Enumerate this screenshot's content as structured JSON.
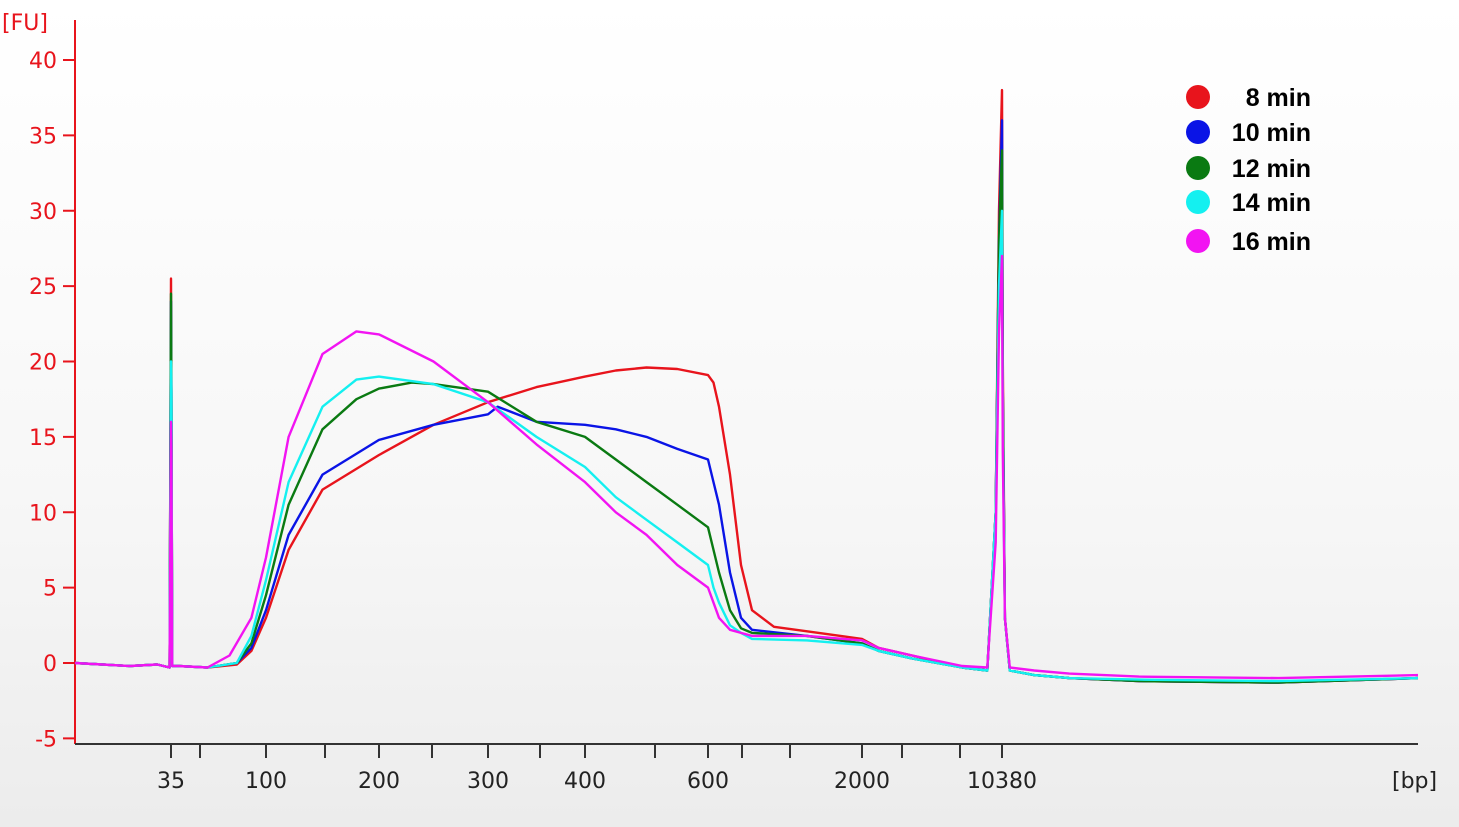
{
  "chart_data": {
    "type": "line",
    "ylabel": "[FU]",
    "xlabel": "[bp]",
    "ylim": [
      -5,
      42
    ],
    "yticks": [
      -5,
      0,
      5,
      10,
      15,
      20,
      25,
      30,
      35,
      40
    ],
    "x_scale": "electrophoresis-bp",
    "xtick_labels": [
      "35",
      "100",
      "200",
      "300",
      "400",
      "600",
      "2000",
      "10380"
    ],
    "grid": false,
    "legend": "top-right",
    "axis_color": "#e8141c",
    "series": [
      {
        "name": "8 min",
        "color": "#e8141c",
        "points": [
          [
            0,
            0
          ],
          [
            10,
            -0.1
          ],
          [
            20,
            -0.2
          ],
          [
            30,
            -0.1
          ],
          [
            34.5,
            -0.3
          ],
          [
            35,
            25.5
          ],
          [
            35.3,
            17
          ],
          [
            35.8,
            -0.2
          ],
          [
            40,
            -0.2
          ],
          [
            60,
            -0.3
          ],
          [
            80,
            -0.1
          ],
          [
            90,
            0.8
          ],
          [
            100,
            3
          ],
          [
            120,
            7.5
          ],
          [
            150,
            11.5
          ],
          [
            200,
            13.8
          ],
          [
            250,
            15.8
          ],
          [
            300,
            17.3
          ],
          [
            350,
            18.3
          ],
          [
            400,
            19
          ],
          [
            450,
            19.4
          ],
          [
            500,
            19.6
          ],
          [
            550,
            19.5
          ],
          [
            600,
            19.1
          ],
          [
            650,
            18.6
          ],
          [
            700,
            17
          ],
          [
            800,
            12.5
          ],
          [
            900,
            6.5
          ],
          [
            1000,
            3.5
          ],
          [
            1200,
            2.4
          ],
          [
            1500,
            2.1
          ],
          [
            2000,
            1.6
          ],
          [
            3000,
            1
          ],
          [
            5000,
            0.5
          ],
          [
            8000,
            -0.3
          ],
          [
            9500,
            -0.5
          ],
          [
            10000,
            10
          ],
          [
            10200,
            30
          ],
          [
            10380,
            38
          ],
          [
            10500,
            20
          ],
          [
            10800,
            3
          ],
          [
            11500,
            -0.5
          ],
          [
            15000,
            -0.8
          ],
          [
            20000,
            -1
          ],
          [
            30000,
            -1.2
          ],
          [
            50000,
            -1.3
          ],
          [
            70000,
            -1
          ]
        ]
      },
      {
        "name": "10 min",
        "color": "#0a14e6",
        "points": [
          [
            0,
            0
          ],
          [
            10,
            -0.1
          ],
          [
            20,
            -0.2
          ],
          [
            30,
            -0.1
          ],
          [
            34.5,
            -0.3
          ],
          [
            35,
            24
          ],
          [
            35.3,
            18
          ],
          [
            35.8,
            -0.2
          ],
          [
            40,
            -0.2
          ],
          [
            60,
            -0.3
          ],
          [
            80,
            0
          ],
          [
            90,
            1
          ],
          [
            100,
            3.5
          ],
          [
            120,
            8.5
          ],
          [
            150,
            12.5
          ],
          [
            200,
            14.8
          ],
          [
            250,
            15.8
          ],
          [
            300,
            16.5
          ],
          [
            310,
            17
          ],
          [
            350,
            16
          ],
          [
            400,
            15.8
          ],
          [
            450,
            15.5
          ],
          [
            500,
            15
          ],
          [
            550,
            14.2
          ],
          [
            600,
            13.5
          ],
          [
            650,
            12
          ],
          [
            700,
            10.5
          ],
          [
            800,
            6
          ],
          [
            900,
            3
          ],
          [
            1000,
            2.2
          ],
          [
            1500,
            1.8
          ],
          [
            2000,
            1.3
          ],
          [
            3000,
            0.8
          ],
          [
            5000,
            0.3
          ],
          [
            8000,
            -0.3
          ],
          [
            9500,
            -0.5
          ],
          [
            10000,
            10
          ],
          [
            10200,
            28
          ],
          [
            10380,
            36
          ],
          [
            10500,
            18
          ],
          [
            10800,
            3
          ],
          [
            11500,
            -0.5
          ],
          [
            15000,
            -0.8
          ],
          [
            20000,
            -1
          ],
          [
            30000,
            -1.2
          ],
          [
            50000,
            -1.3
          ],
          [
            70000,
            -1
          ]
        ]
      },
      {
        "name": "12 min",
        "color": "#0a7a12",
        "points": [
          [
            0,
            0
          ],
          [
            10,
            -0.1
          ],
          [
            20,
            -0.2
          ],
          [
            30,
            -0.1
          ],
          [
            34.5,
            -0.3
          ],
          [
            35,
            24.5
          ],
          [
            35.3,
            18
          ],
          [
            35.8,
            -0.2
          ],
          [
            40,
            -0.2
          ],
          [
            60,
            -0.3
          ],
          [
            80,
            0
          ],
          [
            90,
            1.3
          ],
          [
            100,
            4.5
          ],
          [
            120,
            10.5
          ],
          [
            150,
            15.5
          ],
          [
            180,
            17.5
          ],
          [
            200,
            18.2
          ],
          [
            230,
            18.6
          ],
          [
            250,
            18.5
          ],
          [
            300,
            18
          ],
          [
            350,
            16
          ],
          [
            400,
            15
          ],
          [
            450,
            13.5
          ],
          [
            500,
            12
          ],
          [
            550,
            10.5
          ],
          [
            600,
            9
          ],
          [
            650,
            7.5
          ],
          [
            700,
            6
          ],
          [
            800,
            3.5
          ],
          [
            900,
            2.3
          ],
          [
            1000,
            2
          ],
          [
            1500,
            1.8
          ],
          [
            2000,
            1.3
          ],
          [
            3000,
            0.8
          ],
          [
            5000,
            0.3
          ],
          [
            8000,
            -0.3
          ],
          [
            9500,
            -0.5
          ],
          [
            10000,
            10
          ],
          [
            10200,
            28
          ],
          [
            10380,
            34
          ],
          [
            10500,
            18
          ],
          [
            10800,
            3
          ],
          [
            11500,
            -0.5
          ],
          [
            15000,
            -0.8
          ],
          [
            20000,
            -1
          ],
          [
            30000,
            -1.2
          ],
          [
            50000,
            -1.3
          ],
          [
            70000,
            -1
          ]
        ]
      },
      {
        "name": "14 min",
        "color": "#14f0f0",
        "points": [
          [
            0,
            0
          ],
          [
            10,
            -0.1
          ],
          [
            20,
            -0.2
          ],
          [
            30,
            -0.1
          ],
          [
            34.5,
            -0.3
          ],
          [
            35,
            20
          ],
          [
            35.3,
            18
          ],
          [
            35.8,
            -0.2
          ],
          [
            40,
            -0.2
          ],
          [
            60,
            -0.3
          ],
          [
            80,
            0
          ],
          [
            90,
            1.8
          ],
          [
            100,
            5.5
          ],
          [
            120,
            12
          ],
          [
            150,
            17
          ],
          [
            180,
            18.8
          ],
          [
            200,
            19
          ],
          [
            250,
            18.5
          ],
          [
            300,
            17.3
          ],
          [
            350,
            15
          ],
          [
            400,
            13
          ],
          [
            450,
            11
          ],
          [
            500,
            9.5
          ],
          [
            550,
            8
          ],
          [
            600,
            6.5
          ],
          [
            650,
            5
          ],
          [
            700,
            4
          ],
          [
            800,
            2.5
          ],
          [
            900,
            2
          ],
          [
            1000,
            1.6
          ],
          [
            1500,
            1.5
          ],
          [
            2000,
            1.2
          ],
          [
            3000,
            0.8
          ],
          [
            5000,
            0.3
          ],
          [
            8000,
            -0.3
          ],
          [
            9500,
            -0.5
          ],
          [
            10000,
            10
          ],
          [
            10200,
            25
          ],
          [
            10380,
            30
          ],
          [
            10500,
            16
          ],
          [
            10800,
            3
          ],
          [
            11500,
            -0.5
          ],
          [
            15000,
            -0.8
          ],
          [
            20000,
            -1
          ],
          [
            30000,
            -1.1
          ],
          [
            50000,
            -1.2
          ],
          [
            70000,
            -1
          ]
        ]
      },
      {
        "name": "16 min",
        "color": "#f214f2",
        "points": [
          [
            0,
            0
          ],
          [
            10,
            -0.1
          ],
          [
            20,
            -0.2
          ],
          [
            30,
            -0.1
          ],
          [
            34.5,
            -0.3
          ],
          [
            35,
            16
          ],
          [
            35.3,
            14
          ],
          [
            35.8,
            -0.2
          ],
          [
            40,
            -0.2
          ],
          [
            60,
            -0.3
          ],
          [
            75,
            0.5
          ],
          [
            90,
            3
          ],
          [
            100,
            7
          ],
          [
            120,
            15
          ],
          [
            150,
            20.5
          ],
          [
            180,
            22
          ],
          [
            200,
            21.8
          ],
          [
            250,
            20
          ],
          [
            300,
            17.3
          ],
          [
            350,
            14.5
          ],
          [
            400,
            12
          ],
          [
            450,
            10
          ],
          [
            500,
            8.5
          ],
          [
            550,
            6.5
          ],
          [
            600,
            5
          ],
          [
            650,
            4
          ],
          [
            700,
            3
          ],
          [
            800,
            2.2
          ],
          [
            900,
            2
          ],
          [
            1000,
            1.8
          ],
          [
            1500,
            1.8
          ],
          [
            2000,
            1.5
          ],
          [
            3000,
            1
          ],
          [
            5000,
            0.5
          ],
          [
            8000,
            -0.2
          ],
          [
            9500,
            -0.3
          ],
          [
            10000,
            8
          ],
          [
            10200,
            22
          ],
          [
            10380,
            27
          ],
          [
            10500,
            14
          ],
          [
            10800,
            3
          ],
          [
            11500,
            -0.3
          ],
          [
            15000,
            -0.5
          ],
          [
            20000,
            -0.7
          ],
          [
            30000,
            -0.9
          ],
          [
            50000,
            -1
          ],
          [
            70000,
            -0.8
          ]
        ]
      }
    ]
  }
}
